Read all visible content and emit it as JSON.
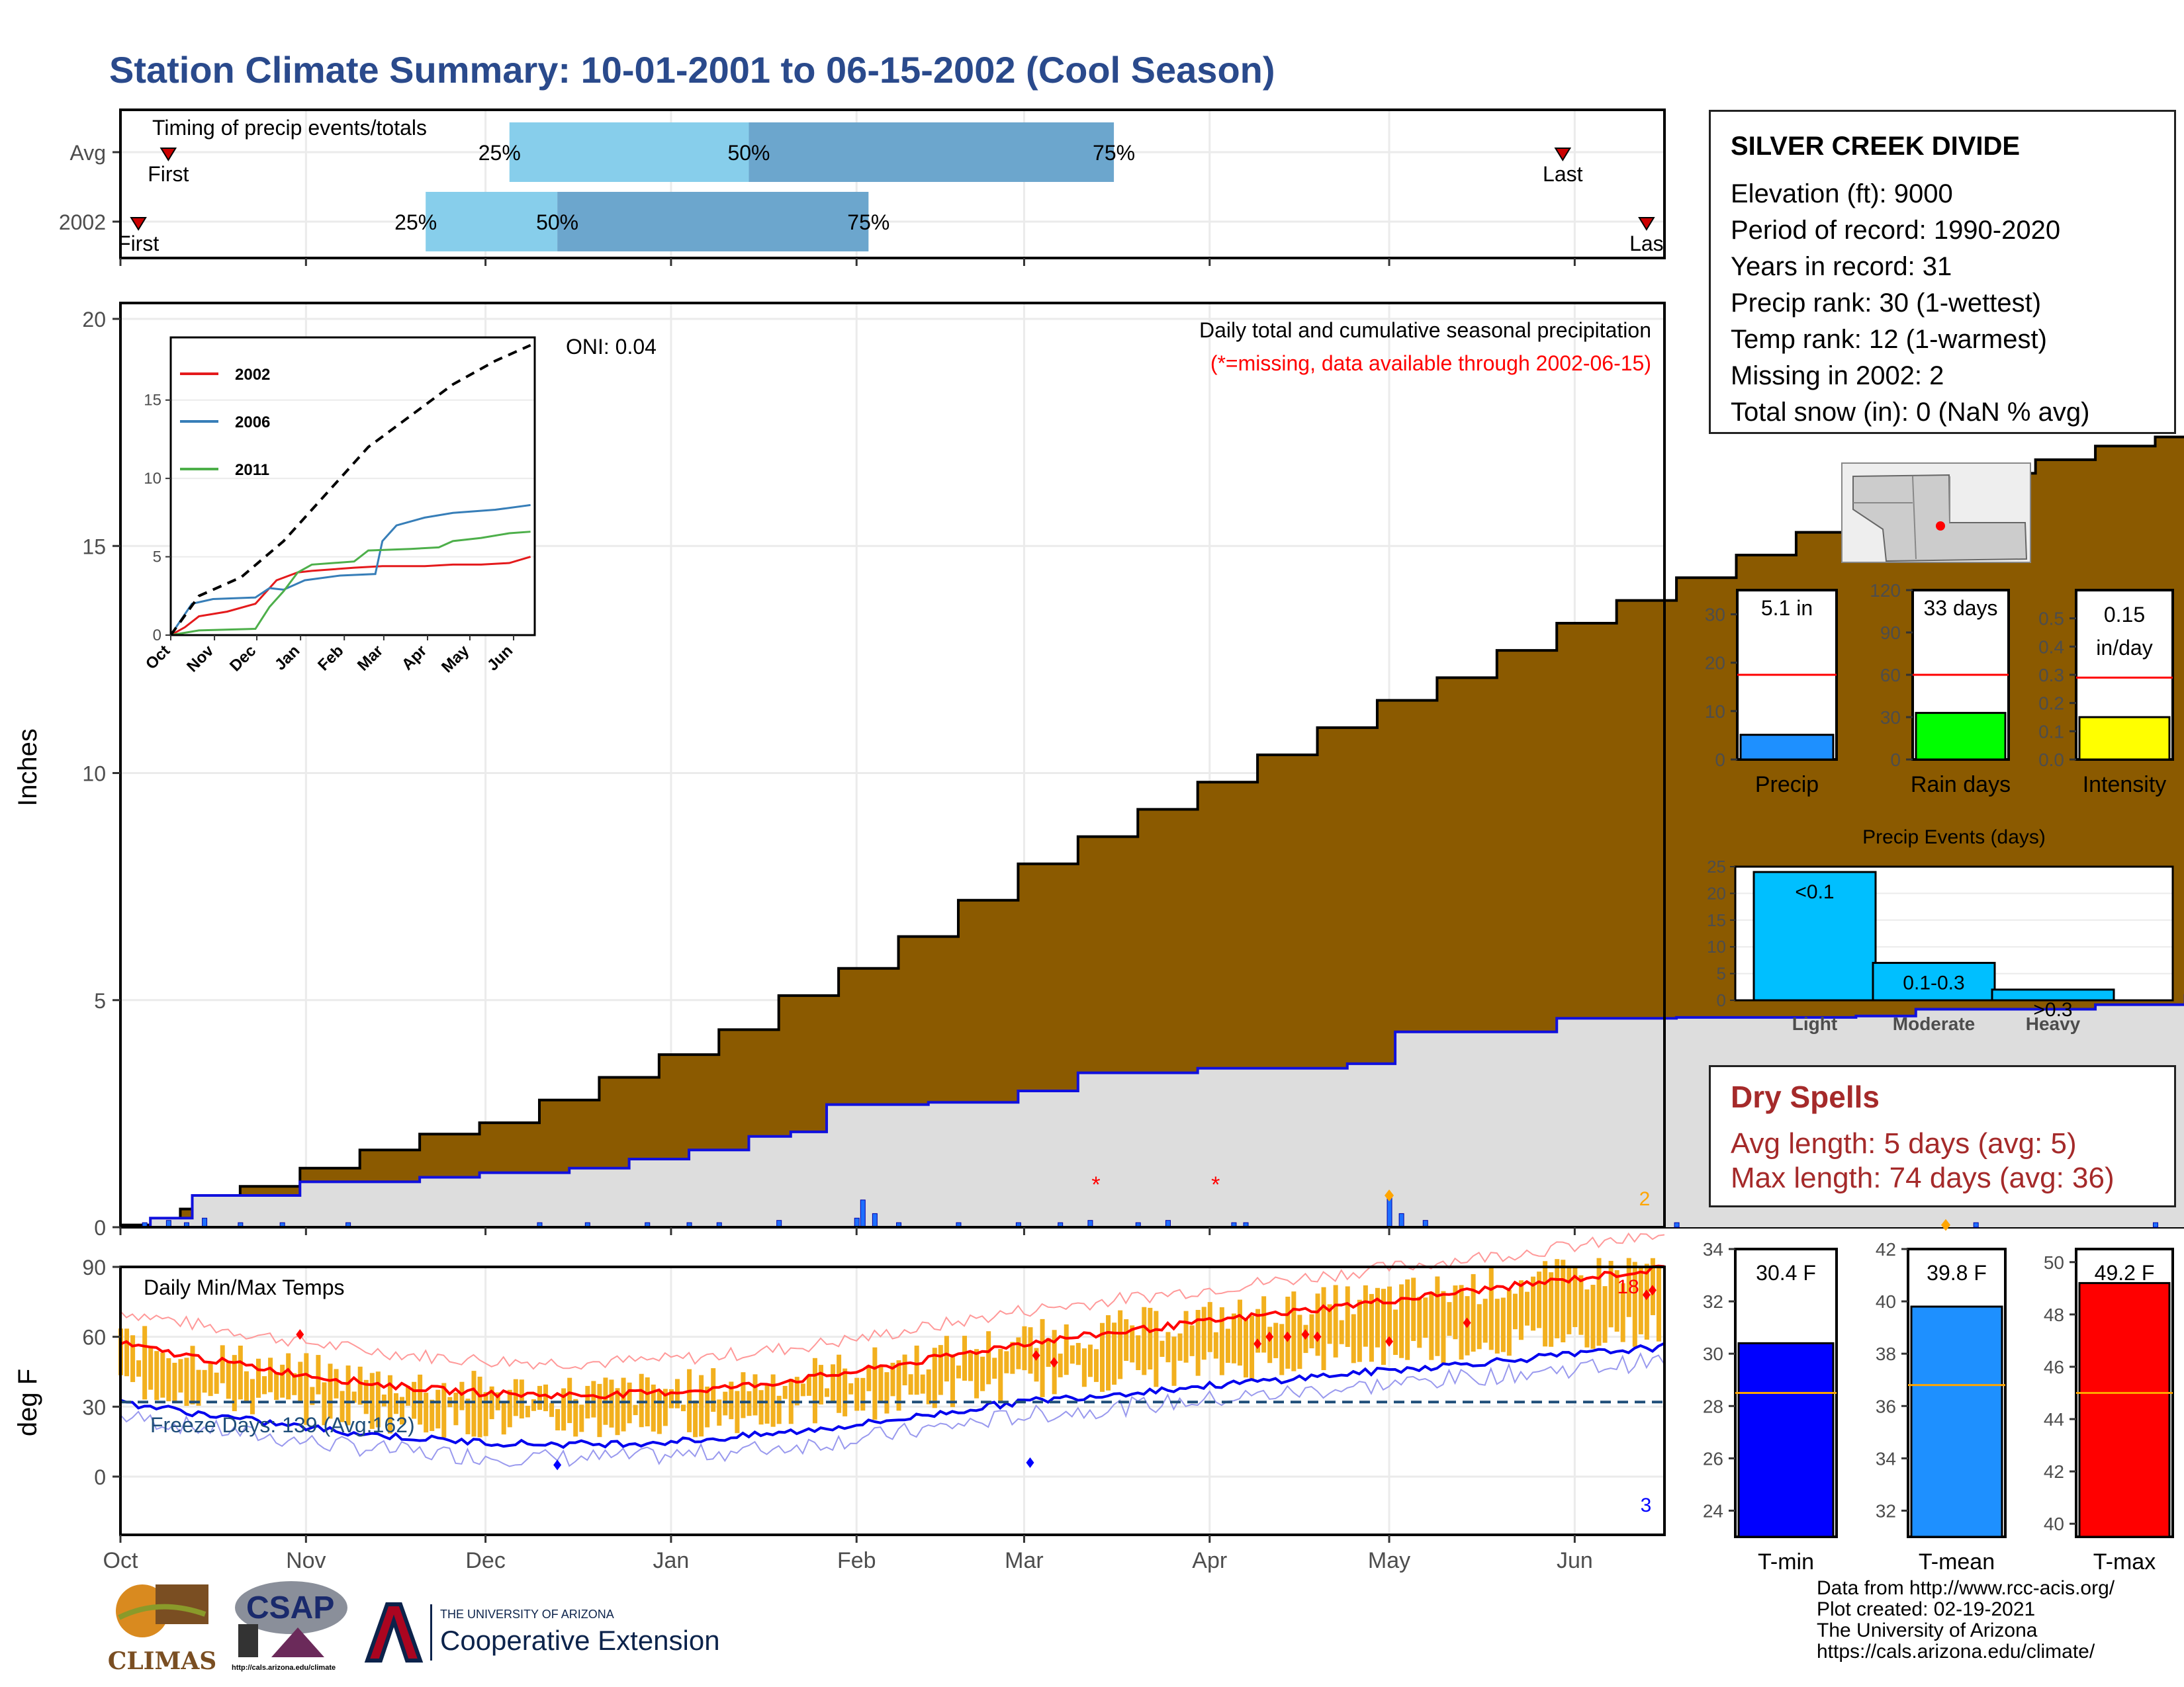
{
  "header": {
    "title": "Station Climate Summary: 10-01-2001 to 06-15-2002 (Cool Season)"
  },
  "station": {
    "name": "SILVER CREEK DIVIDE",
    "lines": [
      "Elevation (ft): 9000",
      "Period of record: 1990-2020",
      "Years in record: 31",
      "Precip rank: 30 (1-wettest)",
      "Temp rank: 12 (1-warmest)",
      "Missing in 2002: 2",
      "Total snow (in): 0 (NaN % avg)"
    ]
  },
  "dry_spells": {
    "title": "Dry Spells",
    "avg": "Avg length: 5 days (avg: 5)",
    "max": "Max length: 74 days (avg: 36)"
  },
  "footer": {
    "lines": [
      "Data from http://www.rcc-acis.org/",
      "Plot created: 02-19-2021",
      "The University of Arizona",
      "https://cals.arizona.edu/climate/"
    ],
    "logos": {
      "climas": "CLIMAS",
      "csap": "CSAP",
      "csap_url": "http://cals.arizona.edu/climate",
      "ua_small": "THE UNIVERSITY OF ARIZONA",
      "ua_big": "Cooperative Extension"
    }
  },
  "colors": {
    "title_blue": "#2A4A8C",
    "cumulative_brown": "#8B5A00",
    "avg_gray": "#DDDDDD",
    "avg_line": "#1010DD",
    "light_blue": "#87CEEB",
    "mid_blue": "#6CA6CD",
    "temp_bar": "#F2B01E",
    "dry_red": "#A52A2A"
  },
  "chart_data": [
    {
      "id": "timing",
      "type": "bar",
      "title": "Timing of precip events/totals",
      "rows": [
        {
          "label": "Avg",
          "first": "10-09",
          "p25": "12-05",
          "p50": "01-14",
          "p75": "03-16",
          "last": "05-30",
          "first_label": "First",
          "last_label": "Last",
          "p_labels": [
            "25%",
            "50%",
            "75%"
          ]
        },
        {
          "label": "2002",
          "first": "10-04",
          "p25": "11-21",
          "p50": "12-13",
          "p75": "02-03",
          "last": "06-13",
          "first_label": "First",
          "last_label": "Las",
          "p_labels": [
            "25%",
            "50%",
            "75%"
          ]
        }
      ]
    },
    {
      "id": "precip",
      "type": "area",
      "title": "Daily total and cumulative seasonal precipitation",
      "subtitle": "(*=missing, data available through 2002-06-15)",
      "annotation": "ONI: 0.04",
      "ylabel": "Inches",
      "ylim": [
        0,
        20
      ],
      "yticks": [
        0,
        5,
        10,
        15,
        20
      ],
      "xticks": [
        "Oct",
        "Nov",
        "Dec",
        "Jan",
        "Feb",
        "Mar",
        "Apr",
        "May",
        "Jun"
      ],
      "count_label": "2",
      "avg_cumulative": [
        [
          0,
          0
        ],
        [
          5,
          0.2
        ],
        [
          12,
          0.7
        ],
        [
          30,
          1.0
        ],
        [
          50,
          1.1
        ],
        [
          60,
          1.2
        ],
        [
          75,
          1.3
        ],
        [
          85,
          1.5
        ],
        [
          95,
          1.7
        ],
        [
          105,
          2.0
        ],
        [
          112,
          2.1
        ],
        [
          118,
          2.7
        ],
        [
          135,
          2.75
        ],
        [
          150,
          3.0
        ],
        [
          160,
          3.4
        ],
        [
          180,
          3.5
        ],
        [
          205,
          3.6
        ],
        [
          213,
          4.3
        ],
        [
          240,
          4.6
        ],
        [
          260,
          4.62
        ],
        [
          290,
          4.65
        ],
        [
          300,
          4.8
        ],
        [
          330,
          4.9
        ],
        [
          345,
          5.1
        ],
        [
          360,
          5.2
        ],
        [
          388,
          5.3
        ]
      ],
      "cumulative": [
        [
          0,
          0.05
        ],
        [
          10,
          0.4
        ],
        [
          20,
          0.9
        ],
        [
          30,
          1.3
        ],
        [
          40,
          1.7
        ],
        [
          50,
          2.05
        ],
        [
          60,
          2.3
        ],
        [
          70,
          2.8
        ],
        [
          80,
          3.3
        ],
        [
          90,
          3.8
        ],
        [
          100,
          4.35
        ],
        [
          110,
          5.1
        ],
        [
          120,
          5.7
        ],
        [
          130,
          6.4
        ],
        [
          140,
          7.2
        ],
        [
          150,
          8.0
        ],
        [
          160,
          8.6
        ],
        [
          170,
          9.2
        ],
        [
          180,
          9.8
        ],
        [
          190,
          10.4
        ],
        [
          200,
          11.0
        ],
        [
          210,
          11.6
        ],
        [
          220,
          12.1
        ],
        [
          230,
          12.7
        ],
        [
          240,
          13.3
        ],
        [
          250,
          13.8
        ],
        [
          260,
          14.3
        ],
        [
          270,
          14.8
        ],
        [
          280,
          15.3
        ],
        [
          290,
          15.7
        ],
        [
          300,
          16.2
        ],
        [
          310,
          16.6
        ],
        [
          320,
          16.9
        ],
        [
          330,
          17.2
        ],
        [
          340,
          17.4
        ],
        [
          350,
          17.6
        ],
        [
          360,
          17.8
        ],
        [
          370,
          18.0
        ],
        [
          380,
          18.2
        ],
        [
          388,
          18.35
        ]
      ],
      "daily": [
        [
          4,
          0.1
        ],
        [
          8,
          0.15
        ],
        [
          11,
          0.1
        ],
        [
          14,
          0.2
        ],
        [
          20,
          0.1
        ],
        [
          27,
          0.1
        ],
        [
          38,
          0.1
        ],
        [
          70,
          0.1
        ],
        [
          78,
          0.1
        ],
        [
          88,
          0.1
        ],
        [
          95,
          0.1
        ],
        [
          100,
          0.1
        ],
        [
          110,
          0.15
        ],
        [
          123,
          0.2
        ],
        [
          124,
          0.6
        ],
        [
          126,
          0.3
        ],
        [
          130,
          0.1
        ],
        [
          140,
          0.1
        ],
        [
          150,
          0.1
        ],
        [
          157,
          0.1
        ],
        [
          162,
          0.15
        ],
        [
          170,
          0.1
        ],
        [
          175,
          0.15
        ],
        [
          186,
          0.1
        ],
        [
          188,
          0.1
        ],
        [
          212,
          0.7
        ],
        [
          214,
          0.3
        ],
        [
          218,
          0.15
        ],
        [
          260,
          0.1
        ],
        [
          310,
          0.1
        ],
        [
          340,
          0.1
        ],
        [
          387,
          0.2
        ]
      ],
      "missing_days": [
        [
          163,
          0.95
        ],
        [
          183,
          0.95
        ]
      ],
      "orange_markers": [
        [
          212,
          0.7
        ],
        [
          305,
          0.05
        ]
      ]
    },
    {
      "id": "inset",
      "type": "line",
      "series": [
        {
          "name": "2002",
          "color": "#E41A1C",
          "values": [
            [
              0,
              0
            ],
            [
              10,
              0.5
            ],
            [
              20,
              1.2
            ],
            [
              40,
              1.5
            ],
            [
              60,
              2.0
            ],
            [
              75,
              3.5
            ],
            [
              90,
              4.0
            ],
            [
              100,
              4.1
            ],
            [
              130,
              4.3
            ],
            [
              150,
              4.4
            ],
            [
              180,
              4.4
            ],
            [
              200,
              4.5
            ],
            [
              220,
              4.5
            ],
            [
              240,
              4.6
            ],
            [
              255,
              5.0
            ]
          ]
        },
        {
          "name": "2006",
          "color": "#377EB8",
          "values": [
            [
              0,
              0
            ],
            [
              15,
              2.0
            ],
            [
              30,
              2.3
            ],
            [
              60,
              2.4
            ],
            [
              70,
              3.0
            ],
            [
              80,
              2.9
            ],
            [
              95,
              3.5
            ],
            [
              120,
              3.8
            ],
            [
              145,
              3.9
            ],
            [
              150,
              6.0
            ],
            [
              160,
              7.0
            ],
            [
              180,
              7.5
            ],
            [
              200,
              7.8
            ],
            [
              230,
              8.0
            ],
            [
              255,
              8.3
            ]
          ]
        },
        {
          "name": "2011",
          "color": "#4DAF4A",
          "values": [
            [
              0,
              0
            ],
            [
              20,
              0.3
            ],
            [
              60,
              0.4
            ],
            [
              70,
              1.8
            ],
            [
              80,
              2.8
            ],
            [
              90,
              4.0
            ],
            [
              100,
              4.5
            ],
            [
              130,
              4.7
            ],
            [
              140,
              5.4
            ],
            [
              170,
              5.5
            ],
            [
              190,
              5.6
            ],
            [
              200,
              6.0
            ],
            [
              220,
              6.2
            ],
            [
              240,
              6.5
            ],
            [
              255,
              6.6
            ]
          ]
        },
        {
          "name": "avg",
          "color": "#000000",
          "values": [
            [
              0,
              0
            ],
            [
              20,
              2.5
            ],
            [
              50,
              3.7
            ],
            [
              80,
              6.0
            ],
            [
              110,
              9.0
            ],
            [
              140,
              12.0
            ],
            [
              170,
              14.0
            ],
            [
              200,
              16.0
            ],
            [
              230,
              17.5
            ],
            [
              255,
              18.5
            ]
          ]
        }
      ],
      "yticks": [
        0,
        5,
        10,
        15
      ],
      "xticks": [
        "Oct",
        "Nov",
        "Dec",
        "Jan",
        "Feb",
        "Mar",
        "Apr",
        "May",
        "Jun"
      ]
    },
    {
      "id": "temps",
      "type": "bar",
      "title": "Daily Min/Max Temps",
      "ylabel": "deg F",
      "ylim": [
        -25,
        90
      ],
      "yticks": [
        0,
        30,
        60,
        90
      ],
      "xticks": [
        "Oct",
        "Nov",
        "Dec",
        "Jan",
        "Feb",
        "Mar",
        "Apr",
        "May",
        "Jun"
      ],
      "freeze_label": "Freeze Days: 139 (Avg:162)",
      "freeze_line": 32,
      "count_high": "18",
      "count_low": "3"
    },
    {
      "id": "mini_precip",
      "type": "bar",
      "categories": [
        "Precip"
      ],
      "values": [
        5.1
      ],
      "avg": 17.5,
      "ylim": [
        0,
        35
      ],
      "yticks": [
        0,
        10,
        20,
        30
      ],
      "label": "5.1 in",
      "color": "#1E90FF"
    },
    {
      "id": "mini_raindays",
      "type": "bar",
      "categories": [
        "Rain days"
      ],
      "values": [
        33
      ],
      "avg": 60,
      "ylim": [
        0,
        120
      ],
      "yticks": [
        0,
        30,
        60,
        90,
        120
      ],
      "label": "33 days",
      "color": "#00FF00"
    },
    {
      "id": "mini_intensity",
      "type": "bar",
      "categories": [
        "Intensity"
      ],
      "values": [
        0.15
      ],
      "avg": 0.29,
      "ylim": [
        0,
        0.6
      ],
      "yticks": [
        "0.0",
        "0.1",
        "0.2",
        "0.3",
        "0.4",
        "0.5"
      ],
      "label": "0.15",
      "label2": "in/day",
      "color": "#FFFF00"
    },
    {
      "id": "events",
      "type": "bar",
      "title": "Precip Events (days)",
      "categories": [
        "Light",
        "Moderate",
        "Heavy"
      ],
      "values": [
        24,
        7,
        2
      ],
      "bar_labels": [
        "<0.1",
        "0.1-0.3",
        ">0.3"
      ],
      "ylim": [
        0,
        25
      ],
      "yticks": [
        0,
        5,
        10,
        15,
        20,
        25
      ],
      "color": "#00BFFF"
    },
    {
      "id": "tmin",
      "type": "bar",
      "categories": [
        "T-min"
      ],
      "values": [
        30.4
      ],
      "avg": 28.5,
      "ylim": [
        23,
        34
      ],
      "yticks": [
        24,
        26,
        28,
        30,
        32,
        34
      ],
      "label": "30.4 F",
      "color": "#0000FF"
    },
    {
      "id": "tmean",
      "type": "bar",
      "categories": [
        "T-mean"
      ],
      "values": [
        39.8
      ],
      "avg": 36.8,
      "ylim": [
        31,
        42
      ],
      "yticks": [
        32,
        34,
        36,
        38,
        40,
        42
      ],
      "label": "39.8 F",
      "color": "#1E90FF"
    },
    {
      "id": "tmax",
      "type": "bar",
      "categories": [
        "T-max"
      ],
      "values": [
        49.2
      ],
      "avg": 45.0,
      "ylim": [
        39.5,
        50.5
      ],
      "yticks": [
        40,
        42,
        44,
        46,
        48,
        50
      ],
      "label": "49.2 F",
      "color": "#FF0000"
    }
  ]
}
